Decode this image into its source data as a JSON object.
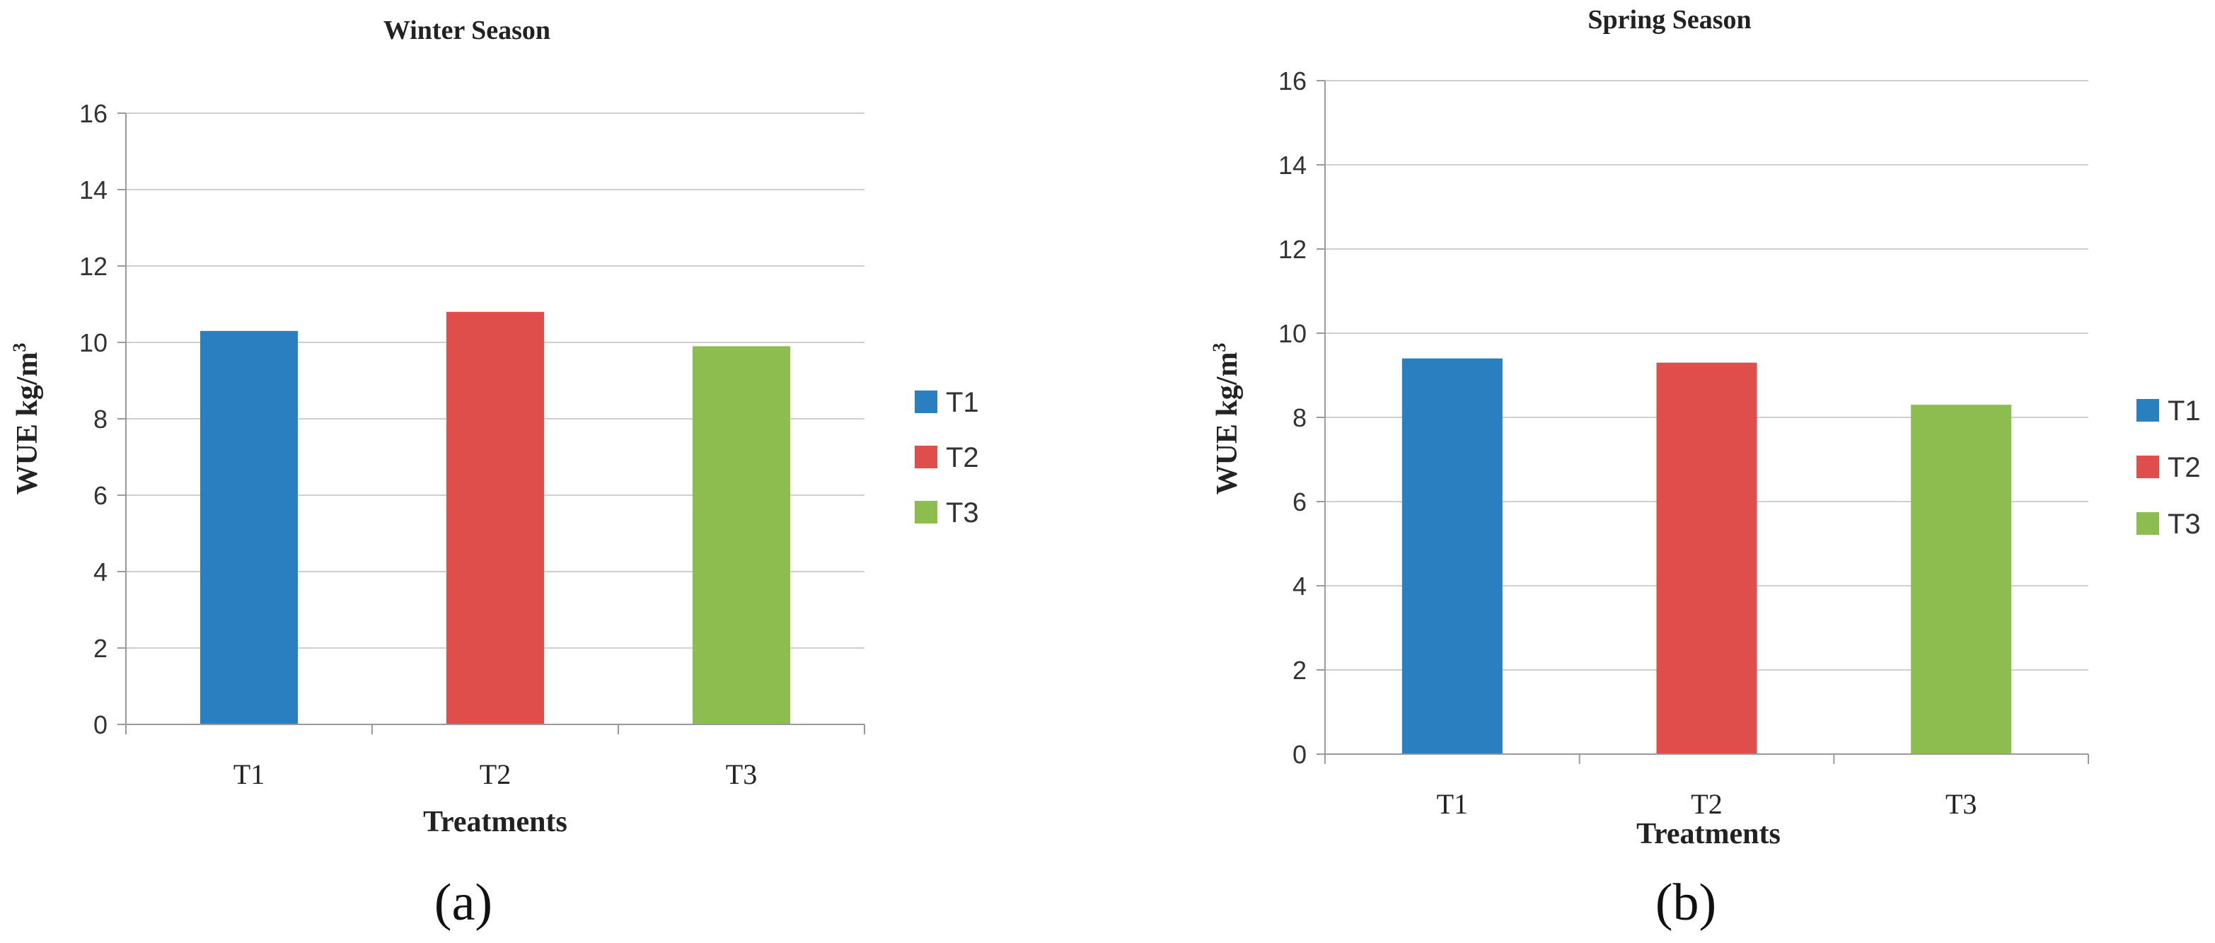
{
  "chart_data": [
    {
      "type": "bar",
      "title": "Winter Season",
      "panel_label": "(a)",
      "xlabel": "Treatments",
      "ylabel": "WUE kg/m",
      "ylabel_superscript": "3",
      "ylim": [
        0,
        16
      ],
      "yticks": [
        0,
        2,
        4,
        6,
        8,
        10,
        12,
        14,
        16
      ],
      "grid": true,
      "legend_position": "right",
      "categories": [
        "T1",
        "T2",
        "T3"
      ],
      "values": [
        10.3,
        10.8,
        9.9
      ],
      "colors": [
        "#2a7fc1",
        "#df4e4b",
        "#8dbd4e"
      ],
      "legend": [
        "T1",
        "T2",
        "T3"
      ]
    },
    {
      "type": "bar",
      "title": "Spring Season",
      "panel_label": "(b)",
      "xlabel": "Treatments",
      "ylabel": "WUE kg/m",
      "ylabel_superscript": "3",
      "ylim": [
        0,
        16
      ],
      "yticks": [
        0,
        2,
        4,
        6,
        8,
        10,
        12,
        14,
        16
      ],
      "grid": true,
      "legend_position": "right",
      "categories": [
        "T1",
        "T2",
        "T3"
      ],
      "values": [
        9.4,
        9.3,
        8.3
      ],
      "colors": [
        "#2a7fc1",
        "#df4e4b",
        "#8dbd4e"
      ],
      "legend": [
        "T1",
        "T2",
        "T3"
      ]
    }
  ]
}
